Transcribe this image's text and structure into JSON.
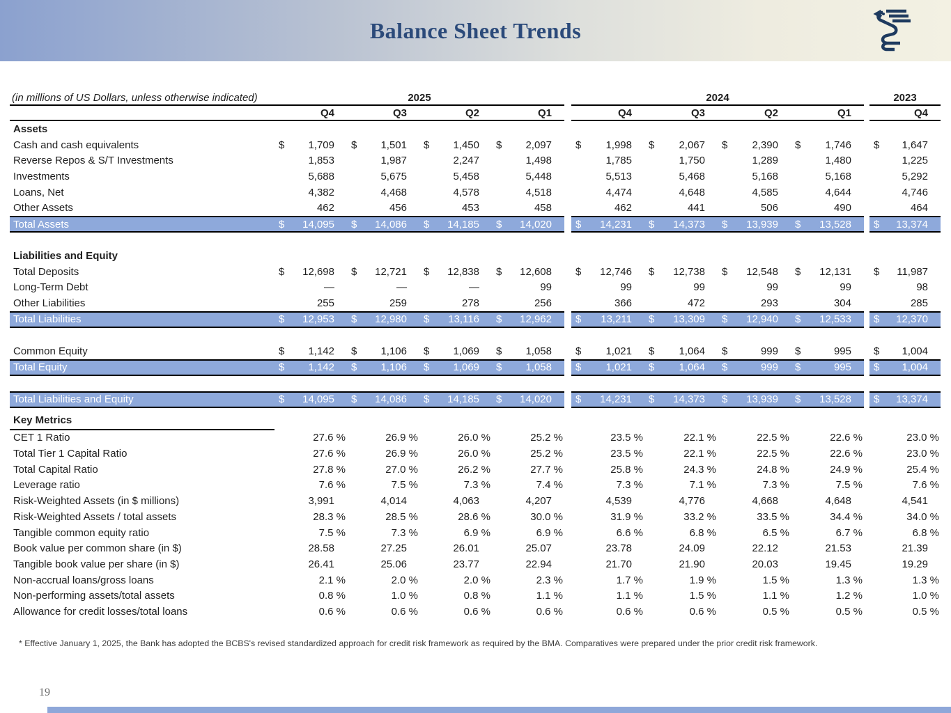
{
  "header": {
    "title": "Balance Sheet Trends",
    "logo_icon": "bank-griffin-logo"
  },
  "table": {
    "subtitle": "(in millions of US Dollars, unless otherwise indicated)",
    "currency_symbol": "$",
    "year_groups": [
      {
        "label": "2025",
        "quarters": [
          "Q4",
          "Q3",
          "Q2",
          "Q1"
        ]
      },
      {
        "label": "2024",
        "quarters": [
          "Q4",
          "Q3",
          "Q2",
          "Q1"
        ]
      },
      {
        "label": "2023",
        "quarters": [
          "Q4"
        ]
      }
    ],
    "rows": [
      {
        "type": "section",
        "label": "Assets"
      },
      {
        "type": "data",
        "dollar": true,
        "label": "Cash and cash equivalents",
        "values": [
          "1,709",
          "1,501",
          "1,450",
          "2,097",
          "1,998",
          "2,067",
          "2,390",
          "1,746",
          "1,647"
        ]
      },
      {
        "type": "data",
        "label": "Reverse Repos & S/T Investments",
        "values": [
          "1,853",
          "1,987",
          "2,247",
          "1,498",
          "1,785",
          "1,750",
          "1,289",
          "1,480",
          "1,225"
        ]
      },
      {
        "type": "data",
        "label": "Investments",
        "values": [
          "5,688",
          "5,675",
          "5,458",
          "5,448",
          "5,513",
          "5,468",
          "5,168",
          "5,168",
          "5,292"
        ]
      },
      {
        "type": "data",
        "label": "Loans, Net",
        "values": [
          "4,382",
          "4,468",
          "4,578",
          "4,518",
          "4,474",
          "4,648",
          "4,585",
          "4,644",
          "4,746"
        ]
      },
      {
        "type": "data",
        "label": "Other Assets",
        "values": [
          "462",
          "456",
          "453",
          "458",
          "462",
          "441",
          "506",
          "490",
          "464"
        ]
      },
      {
        "type": "total",
        "dollar": true,
        "label": "Total Assets",
        "values": [
          "14,095",
          "14,086",
          "14,185",
          "14,020",
          "14,231",
          "14,373",
          "13,939",
          "13,528",
          "13,374"
        ]
      },
      {
        "type": "spacer"
      },
      {
        "type": "section",
        "label": "Liabilities and Equity"
      },
      {
        "type": "data",
        "dollar": true,
        "label": "Total Deposits",
        "values": [
          "12,698",
          "12,721",
          "12,838",
          "12,608",
          "12,746",
          "12,738",
          "12,548",
          "12,131",
          "11,987"
        ]
      },
      {
        "type": "data",
        "label": "Long-Term Debt",
        "values": [
          "—",
          "—",
          "—",
          "99",
          "99",
          "99",
          "99",
          "99",
          "98"
        ]
      },
      {
        "type": "data",
        "label": "Other Liabilities",
        "values": [
          "255",
          "259",
          "278",
          "256",
          "366",
          "472",
          "293",
          "304",
          "285"
        ]
      },
      {
        "type": "total",
        "dollar": true,
        "label": "Total Liabilities",
        "values": [
          "12,953",
          "12,980",
          "13,116",
          "12,962",
          "13,211",
          "13,309",
          "12,940",
          "12,533",
          "12,370"
        ]
      },
      {
        "type": "spacer"
      },
      {
        "type": "data",
        "dollar": true,
        "label": "Common Equity",
        "values": [
          "1,142",
          "1,106",
          "1,069",
          "1,058",
          "1,021",
          "1,064",
          "999",
          "995",
          "1,004"
        ]
      },
      {
        "type": "total",
        "dollar": true,
        "label": "Total Equity",
        "values": [
          "1,142",
          "1,106",
          "1,069",
          "1,058",
          "1,021",
          "1,064",
          "999",
          "995",
          "1,004"
        ]
      },
      {
        "type": "spacer"
      },
      {
        "type": "total",
        "dollar": true,
        "label": "Total Liabilities and Equity",
        "values": [
          "14,095",
          "14,086",
          "14,185",
          "14,020",
          "14,231",
          "14,373",
          "13,939",
          "13,528",
          "13,374"
        ]
      },
      {
        "type": "metrics_header",
        "label": "Key Metrics"
      },
      {
        "type": "data",
        "label": "CET 1 Ratio",
        "values": [
          "27.6 %",
          "26.9 %",
          "26.0 %",
          "25.2 %",
          "23.5 %",
          "22.1 %",
          "22.5 %",
          "22.6 %",
          "23.0 %"
        ]
      },
      {
        "type": "data",
        "label": "Total Tier 1 Capital Ratio",
        "values": [
          "27.6 %",
          "26.9 %",
          "26.0 %",
          "25.2 %",
          "23.5 %",
          "22.1 %",
          "22.5 %",
          "22.6 %",
          "23.0 %"
        ]
      },
      {
        "type": "data",
        "label": "Total Capital Ratio",
        "values": [
          "27.8 %",
          "27.0 %",
          "26.2 %",
          "27.7 %",
          "25.8 %",
          "24.3 %",
          "24.8 %",
          "24.9 %",
          "25.4 %"
        ]
      },
      {
        "type": "data",
        "label": "Leverage ratio",
        "values": [
          "7.6 %",
          "7.5 %",
          "7.3 %",
          "7.4 %",
          "7.3 %",
          "7.1 %",
          "7.3 %",
          "7.5 %",
          "7.6 %"
        ]
      },
      {
        "type": "data",
        "label": "Risk-Weighted Assets (in $ millions)",
        "values": [
          "3,991",
          "4,014",
          "4,063",
          "4,207",
          "4,539",
          "4,776",
          "4,668",
          "4,648",
          "4,541"
        ]
      },
      {
        "type": "data",
        "label": "Risk-Weighted Assets / total assets",
        "values": [
          "28.3 %",
          "28.5 %",
          "28.6 %",
          "30.0 %",
          "31.9 %",
          "33.2 %",
          "33.5 %",
          "34.4 %",
          "34.0 %"
        ]
      },
      {
        "type": "data",
        "label": "Tangible common equity ratio",
        "values": [
          "7.5 %",
          "7.3 %",
          "6.9 %",
          "6.9 %",
          "6.6 %",
          "6.8 %",
          "6.5 %",
          "6.7 %",
          "6.8 %"
        ]
      },
      {
        "type": "data",
        "label": "Book value per common share (in $)",
        "values": [
          "28.58",
          "27.25",
          "26.01",
          "25.07",
          "23.78",
          "24.09",
          "22.12",
          "21.53",
          "21.39"
        ]
      },
      {
        "type": "data",
        "label": "Tangible book value per share (in $)",
        "values": [
          "26.41",
          "25.06",
          "23.77",
          "22.94",
          "21.70",
          "21.90",
          "20.03",
          "19.45",
          "19.29"
        ]
      },
      {
        "type": "data",
        "label": "Non-accrual loans/gross loans",
        "values": [
          "2.1 %",
          "2.0 %",
          "2.0 %",
          "2.3 %",
          "1.7 %",
          "1.9 %",
          "1.5 %",
          "1.3 %",
          "1.3 %"
        ]
      },
      {
        "type": "data",
        "label": "Non-performing assets/total assets",
        "values": [
          "0.8 %",
          "1.0 %",
          "0.8 %",
          "1.1 %",
          "1.1 %",
          "1.5 %",
          "1.1 %",
          "1.2 %",
          "1.0 %"
        ]
      },
      {
        "type": "data",
        "label": "Allowance for credit losses/total loans",
        "values": [
          "0.6 %",
          "0.6 %",
          "0.6 %",
          "0.6 %",
          "0.6 %",
          "0.6 %",
          "0.5 %",
          "0.5 %",
          "0.5 %"
        ]
      }
    ]
  },
  "footnote": "* Effective January 1, 2025, the Bank has adopted the BCBS's revised standardized approach for credit risk framework as required by the BMA. Comparatives were prepared under the prior credit risk framework.",
  "page_number": "19",
  "colors": {
    "header_gradient_left": "#8BA1CF",
    "header_gradient_right": "#F3F1E3",
    "title_text": "#2B4A7A",
    "highlight_row": "#8EA9DB",
    "footer_bar": "#8EA7D9",
    "logo_navy": "#1E3A5F"
  }
}
